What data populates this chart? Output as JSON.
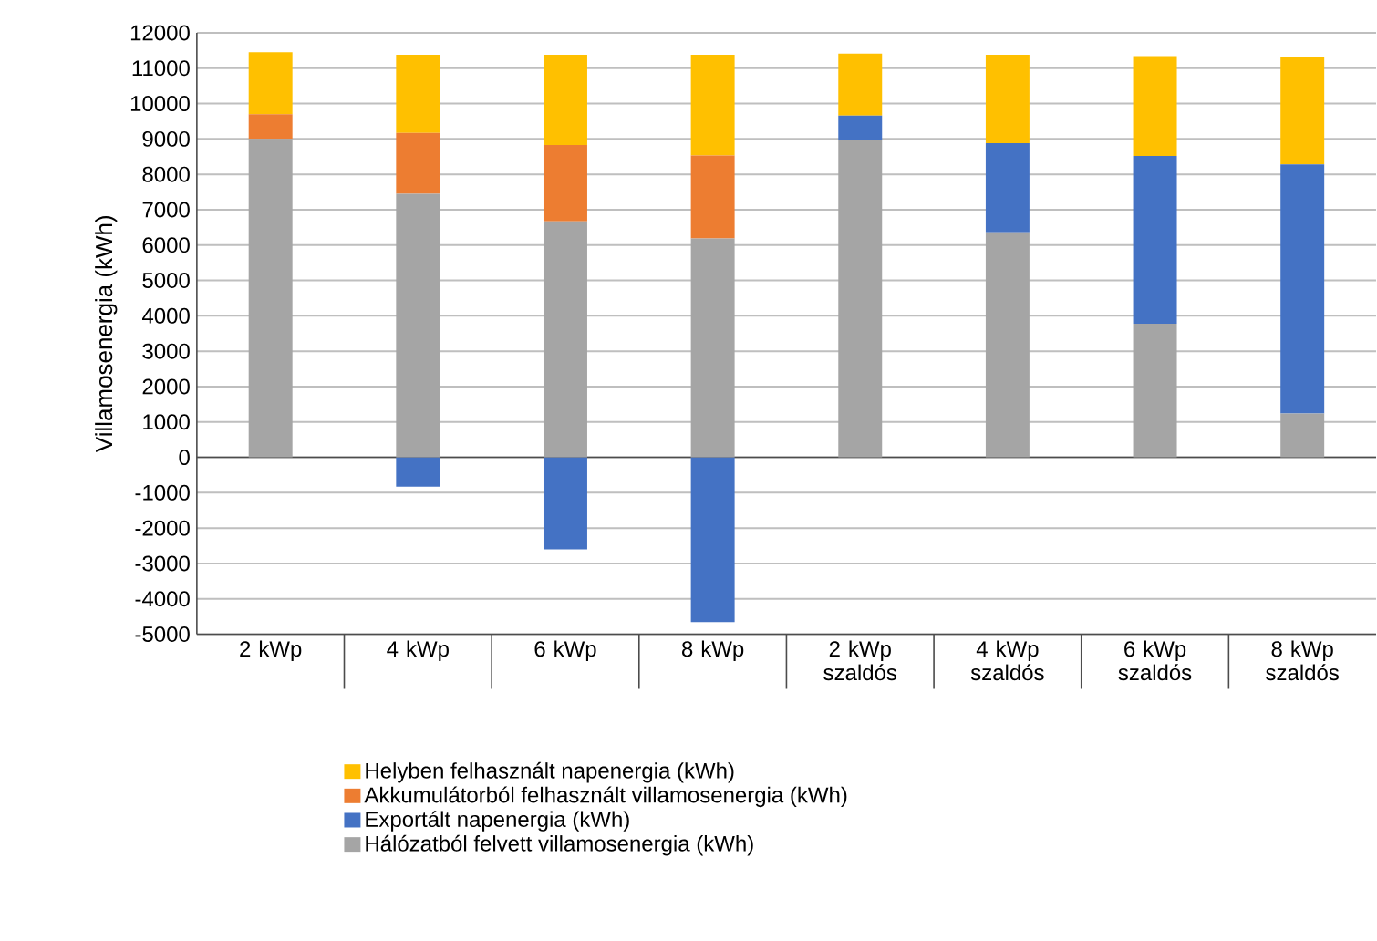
{
  "chart_data": {
    "type": "bar",
    "stacked": true,
    "ylabel": "Villamosenergia (kWh)",
    "categories": [
      "2 kWp",
      "4 kWp",
      "6 kWp",
      "8 kWp",
      "2 kWp szaldós",
      "4 kWp szaldós",
      "6 kWp szaldós",
      "8 kWp szaldós"
    ],
    "series": [
      {
        "name": "Hálózatból felvett villamosenergia (kWh)",
        "color": "#a5a5a5",
        "values": [
          9000,
          7450,
          6670,
          6190,
          8970,
          6360,
          3780,
          1240
        ]
      },
      {
        "name": "Exportált napenergia (kWh)",
        "color": "#4472c4",
        "values": [
          null,
          -830,
          -2600,
          -4660,
          690,
          2520,
          4740,
          7040
        ]
      },
      {
        "name": "Akkumulátorból felhasznált villamosenergia (kWh)",
        "color": "#ed7d31",
        "values": [
          700,
          1720,
          2160,
          2340,
          null,
          null,
          null,
          null
        ]
      },
      {
        "name": "Helyben felhasznált napenergia (kWh)",
        "color": "#ffc000",
        "values": [
          1750,
          2210,
          2550,
          2850,
          1750,
          2500,
          2820,
          3050
        ]
      }
    ],
    "ylim": [
      -5000,
      12000
    ],
    "yticks": [
      -5000,
      -4000,
      -3000,
      -2000,
      -1000,
      0,
      1000,
      2000,
      3000,
      4000,
      5000,
      6000,
      7000,
      8000,
      9000,
      10000,
      11000,
      12000
    ],
    "grid": "y",
    "legend": "bottom"
  }
}
